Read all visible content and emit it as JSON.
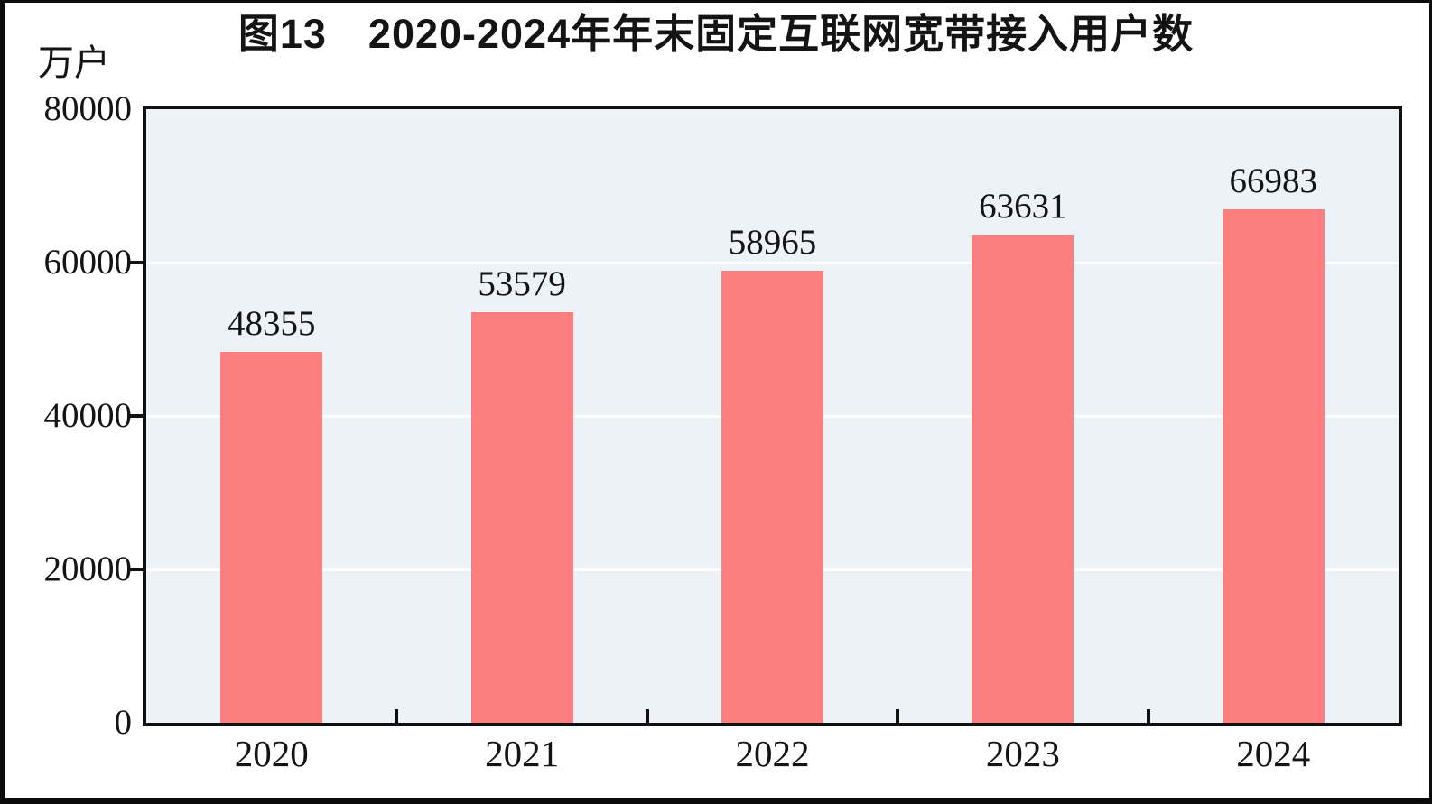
{
  "chart_data": {
    "type": "bar",
    "title": "图13　2020-2024年年末固定互联网宽带接入用户数",
    "unit_label": "万户",
    "categories": [
      "2020",
      "2021",
      "2022",
      "2023",
      "2024"
    ],
    "values": [
      48355,
      53579,
      58965,
      63631,
      66983
    ],
    "xlabel": "",
    "ylabel": "万户",
    "ylim": [
      0,
      80000
    ],
    "yticks": [
      0,
      20000,
      40000,
      60000,
      80000
    ],
    "grid": true,
    "gridline_values": [
      20000,
      40000,
      60000
    ],
    "legend": false,
    "value_labels_shown": true,
    "colors": {
      "bar": "#FC7F7F",
      "plot_background": "#ECF2F6",
      "gridline": "#FFFFFF",
      "text": "#141414",
      "frame": "#101010"
    }
  }
}
